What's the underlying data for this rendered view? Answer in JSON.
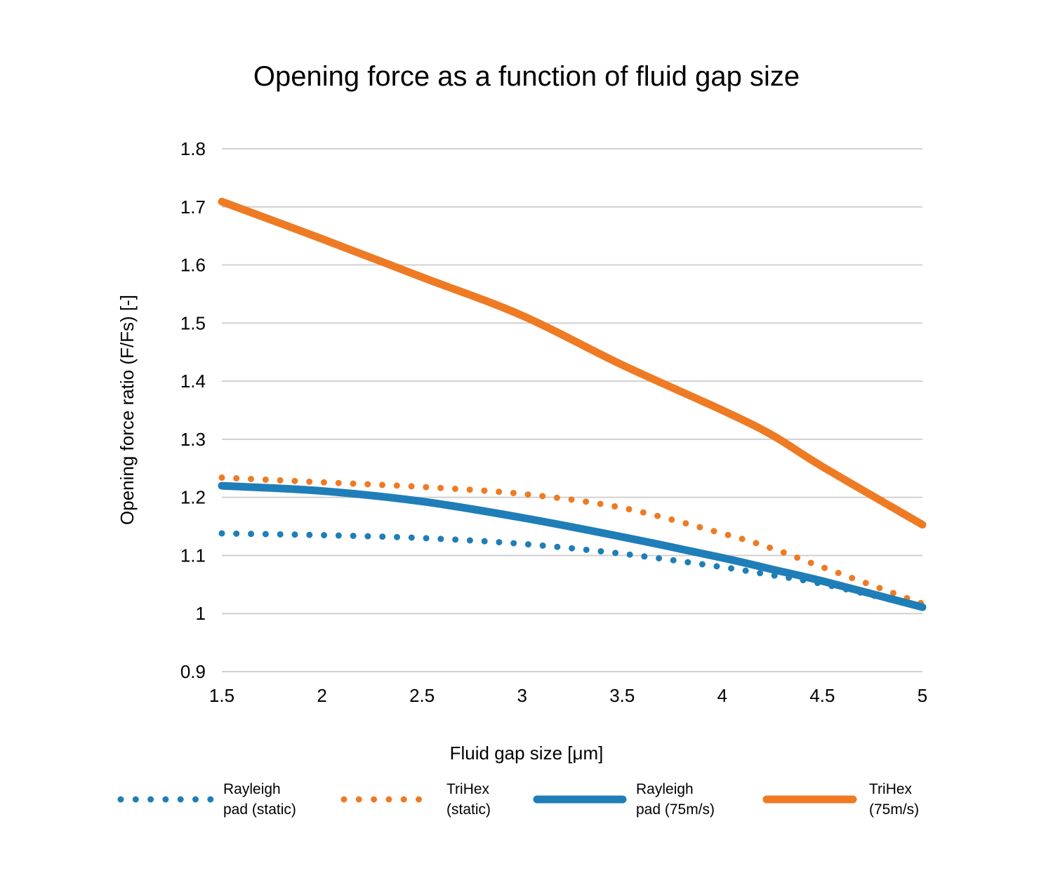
{
  "chart_data": {
    "type": "line",
    "title": "Opening force as a function of fluid gap size",
    "xlabel": "Fluid gap size [μm]",
    "ylabel": "Opening force ratio (F/Fs) [-]",
    "xlim": [
      1.5,
      5
    ],
    "ylim": [
      0.9,
      1.8
    ],
    "xticks": [
      "1.5",
      "2",
      "2.5",
      "3",
      "3.5",
      "4",
      "4.5",
      "5"
    ],
    "yticks": [
      "0.9",
      "1",
      "1.1",
      "1.2",
      "1.3",
      "1.4",
      "1.5",
      "1.6",
      "1.7",
      "1.8"
    ],
    "grid": "horizontal",
    "legend_position": "bottom",
    "x": [
      1.5,
      2,
      2.5,
      3,
      3.5,
      4,
      4.25,
      4.5,
      5
    ],
    "series": [
      {
        "name": "Rayleigh pad (static)",
        "color": "#1f7eb8",
        "style": "dotted",
        "values": [
          1.138,
          1.135,
          1.13,
          1.12,
          1.103,
          1.08,
          1.066,
          1.051,
          1.011
        ]
      },
      {
        "name": "TriHex (static)",
        "color": "#ee7b24",
        "style": "dotted",
        "values": [
          1.234,
          1.226,
          1.218,
          1.206,
          1.182,
          1.138,
          1.112,
          1.08,
          1.017
        ]
      },
      {
        "name": "Rayleigh pad (75m/s)",
        "color": "#1f7eb8",
        "style": "solid",
        "values": [
          1.22,
          1.211,
          1.193,
          1.165,
          1.132,
          1.096,
          1.076,
          1.056,
          1.011
        ]
      },
      {
        "name": "TriHex (75m/s)",
        "color": "#ee7b24",
        "style": "solid",
        "values": [
          1.709,
          1.645,
          1.579,
          1.513,
          1.428,
          1.35,
          1.307,
          1.253,
          1.153
        ]
      }
    ],
    "legend_labels": [
      [
        "Rayleigh",
        "pad (static)"
      ],
      [
        "TriHex",
        "(static)"
      ],
      [
        "Rayleigh",
        "pad (75m/s)"
      ],
      [
        "TriHex",
        "(75m/s)"
      ]
    ]
  }
}
